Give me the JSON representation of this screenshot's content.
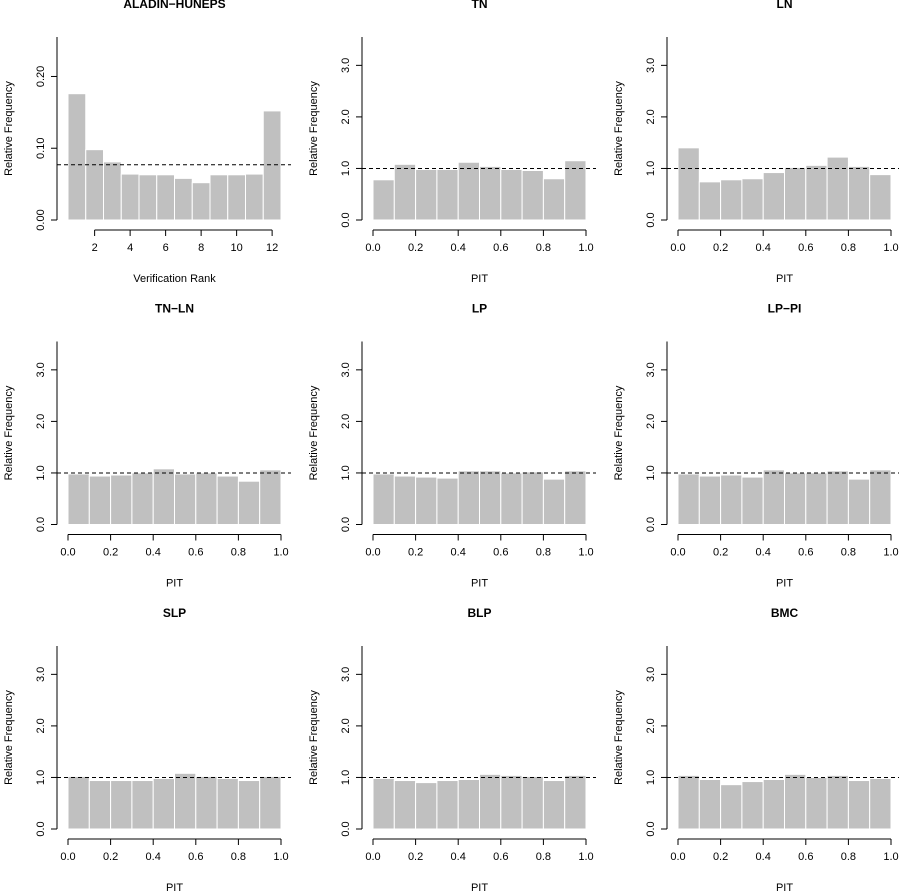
{
  "chart_data": [
    {
      "type": "histogram",
      "title": "ALADIN−HUNEPS",
      "xlabel": "Verification Rank",
      "ylabel": "Relative Frequency",
      "bins": [
        0.5,
        1.5,
        2.5,
        3.5,
        4.5,
        5.5,
        6.5,
        7.5,
        8.5,
        9.5,
        10.5,
        11.5,
        12.5
      ],
      "values": [
        0.176,
        0.098,
        0.081,
        0.064,
        0.063,
        0.063,
        0.058,
        0.052,
        0.063,
        0.063,
        0.064,
        0.152
      ],
      "color": "#c0c0c0",
      "hline": 0.077,
      "xlim": [
        0.5,
        12.5
      ],
      "xticks": [
        2,
        4,
        6,
        8,
        10,
        12
      ],
      "ylim": [
        0,
        0.255
      ],
      "yticks": [
        {
          "value": 0,
          "label": "0.00"
        },
        {
          "value": 0.1,
          "label": "0.10"
        },
        {
          "value": 0.2,
          "label": "0.20"
        }
      ]
    },
    {
      "type": "histogram",
      "title": "TN",
      "xlabel": "PIT",
      "ylabel": "Relative Frequency",
      "bins": [
        0,
        0.1,
        0.2,
        0.3,
        0.4,
        0.5,
        0.6,
        0.7,
        0.8,
        0.9,
        1
      ],
      "values": [
        0.78,
        1.08,
        0.98,
        0.98,
        1.12,
        1.04,
        0.98,
        0.96,
        0.8,
        1.15
      ],
      "color": "#c0c0c0",
      "hline": 1,
      "xlim": [
        0,
        1
      ],
      "xticks": [
        {
          "value": 0,
          "label": "0.0"
        },
        0.2,
        0.4,
        0.6,
        0.8,
        {
          "value": 1,
          "label": "1.0"
        }
      ],
      "ylim": [
        0,
        3.55
      ],
      "yticks": [
        {
          "value": 0,
          "label": "0.0"
        },
        {
          "value": 1,
          "label": "1.0"
        },
        {
          "value": 2,
          "label": "2.0"
        },
        {
          "value": 3,
          "label": "3.0"
        }
      ]
    },
    {
      "type": "histogram",
      "title": "LN",
      "xlabel": "PIT",
      "ylabel": "Relative Frequency",
      "bins": [
        0,
        0.1,
        0.2,
        0.3,
        0.4,
        0.5,
        0.6,
        0.7,
        0.8,
        0.9,
        1
      ],
      "values": [
        1.4,
        0.74,
        0.78,
        0.8,
        0.92,
        1.02,
        1.06,
        1.22,
        1.04,
        0.88
      ],
      "color": "#c0c0c0",
      "hline": 1,
      "xlim": [
        0,
        1
      ],
      "xticks": [
        {
          "value": 0,
          "label": "0.0"
        },
        0.2,
        0.4,
        0.6,
        0.8,
        {
          "value": 1,
          "label": "1.0"
        }
      ],
      "ylim": [
        0,
        3.55
      ],
      "yticks": [
        {
          "value": 0,
          "label": "0.0"
        },
        {
          "value": 1,
          "label": "1.0"
        },
        {
          "value": 2,
          "label": "2.0"
        },
        {
          "value": 3,
          "label": "3.0"
        }
      ]
    },
    {
      "type": "histogram",
      "title": "TN−LN",
      "xlabel": "PIT",
      "ylabel": "Relative Frequency",
      "bins": [
        0,
        0.1,
        0.2,
        0.3,
        0.4,
        0.5,
        0.6,
        0.7,
        0.8,
        0.9,
        1
      ],
      "values": [
        0.98,
        0.94,
        0.96,
        1.0,
        1.08,
        0.98,
        1.0,
        0.94,
        0.84,
        1.06
      ],
      "color": "#c0c0c0",
      "hline": 1,
      "xlim": [
        0,
        1
      ],
      "xticks": [
        {
          "value": 0,
          "label": "0.0"
        },
        0.2,
        0.4,
        0.6,
        0.8,
        {
          "value": 1,
          "label": "1.0"
        }
      ],
      "ylim": [
        0,
        3.55
      ],
      "yticks": [
        {
          "value": 0,
          "label": "0.0"
        },
        {
          "value": 1,
          "label": "1.0"
        },
        {
          "value": 2,
          "label": "2.0"
        },
        {
          "value": 3,
          "label": "3.0"
        }
      ]
    },
    {
      "type": "histogram",
      "title": "LP",
      "xlabel": "PIT",
      "ylabel": "Relative Frequency",
      "bins": [
        0,
        0.1,
        0.2,
        0.3,
        0.4,
        0.5,
        0.6,
        0.7,
        0.8,
        0.9,
        1
      ],
      "values": [
        0.98,
        0.94,
        0.92,
        0.9,
        1.04,
        1.04,
        1.0,
        1.02,
        0.88,
        1.04
      ],
      "color": "#c0c0c0",
      "hline": 1,
      "xlim": [
        0,
        1
      ],
      "xticks": [
        {
          "value": 0,
          "label": "0.0"
        },
        0.2,
        0.4,
        0.6,
        0.8,
        {
          "value": 1,
          "label": "1.0"
        }
      ],
      "ylim": [
        0,
        3.55
      ],
      "yticks": [
        {
          "value": 0,
          "label": "0.0"
        },
        {
          "value": 1,
          "label": "1.0"
        },
        {
          "value": 2,
          "label": "2.0"
        },
        {
          "value": 3,
          "label": "3.0"
        }
      ]
    },
    {
      "type": "histogram",
      "title": "LP−PI",
      "xlabel": "PIT",
      "ylabel": "Relative Frequency",
      "bins": [
        0,
        0.1,
        0.2,
        0.3,
        0.4,
        0.5,
        0.6,
        0.7,
        0.8,
        0.9,
        1
      ],
      "values": [
        0.98,
        0.94,
        0.96,
        0.92,
        1.06,
        1.0,
        1.0,
        1.04,
        0.88,
        1.06
      ],
      "color": "#c0c0c0",
      "hline": 1,
      "xlim": [
        0,
        1
      ],
      "xticks": [
        {
          "value": 0,
          "label": "0.0"
        },
        0.2,
        0.4,
        0.6,
        0.8,
        {
          "value": 1,
          "label": "1.0"
        }
      ],
      "ylim": [
        0,
        3.55
      ],
      "yticks": [
        {
          "value": 0,
          "label": "0.0"
        },
        {
          "value": 1,
          "label": "1.0"
        },
        {
          "value": 2,
          "label": "2.0"
        },
        {
          "value": 3,
          "label": "3.0"
        }
      ]
    },
    {
      "type": "histogram",
      "title": "SLP",
      "xlabel": "PIT",
      "ylabel": "Relative Frequency",
      "bins": [
        0,
        0.1,
        0.2,
        0.3,
        0.4,
        0.5,
        0.6,
        0.7,
        0.8,
        0.9,
        1
      ],
      "values": [
        1.02,
        0.94,
        0.94,
        0.94,
        0.98,
        1.08,
        1.02,
        0.98,
        0.94,
        1.02
      ],
      "color": "#c0c0c0",
      "hline": 1,
      "xlim": [
        0,
        1
      ],
      "xticks": [
        {
          "value": 0,
          "label": "0.0"
        },
        0.2,
        0.4,
        0.6,
        0.8,
        {
          "value": 1,
          "label": "1.0"
        }
      ],
      "ylim": [
        0,
        3.55
      ],
      "yticks": [
        {
          "value": 0,
          "label": "0.0"
        },
        {
          "value": 1,
          "label": "1.0"
        },
        {
          "value": 2,
          "label": "2.0"
        },
        {
          "value": 3,
          "label": "3.0"
        }
      ]
    },
    {
      "type": "histogram",
      "title": "BLP",
      "xlabel": "PIT",
      "ylabel": "Relative Frequency",
      "bins": [
        0,
        0.1,
        0.2,
        0.3,
        0.4,
        0.5,
        0.6,
        0.7,
        0.8,
        0.9,
        1
      ],
      "values": [
        0.98,
        0.94,
        0.9,
        0.94,
        0.96,
        1.06,
        1.04,
        1.02,
        0.94,
        1.04
      ],
      "color": "#c0c0c0",
      "hline": 1,
      "xlim": [
        0,
        1
      ],
      "xticks": [
        {
          "value": 0,
          "label": "0.0"
        },
        0.2,
        0.4,
        0.6,
        0.8,
        {
          "value": 1,
          "label": "1.0"
        }
      ],
      "ylim": [
        0,
        3.55
      ],
      "yticks": [
        {
          "value": 0,
          "label": "0.0"
        },
        {
          "value": 1,
          "label": "1.0"
        },
        {
          "value": 2,
          "label": "2.0"
        },
        {
          "value": 3,
          "label": "3.0"
        }
      ]
    },
    {
      "type": "histogram",
      "title": "BMC",
      "xlabel": "PIT",
      "ylabel": "Relative Frequency",
      "bins": [
        0,
        0.1,
        0.2,
        0.3,
        0.4,
        0.5,
        0.6,
        0.7,
        0.8,
        0.9,
        1
      ],
      "values": [
        1.04,
        0.96,
        0.86,
        0.92,
        0.96,
        1.06,
        1.0,
        1.04,
        0.94,
        0.98
      ],
      "color": "#c0c0c0",
      "hline": 1,
      "xlim": [
        0,
        1
      ],
      "xticks": [
        {
          "value": 0,
          "label": "0.0"
        },
        0.2,
        0.4,
        0.6,
        0.8,
        {
          "value": 1,
          "label": "1.0"
        }
      ],
      "ylim": [
        0,
        3.55
      ],
      "yticks": [
        {
          "value": 0,
          "label": "0.0"
        },
        {
          "value": 1,
          "label": "1.0"
        },
        {
          "value": 2,
          "label": "2.0"
        },
        {
          "value": 3,
          "label": "3.0"
        }
      ]
    }
  ]
}
